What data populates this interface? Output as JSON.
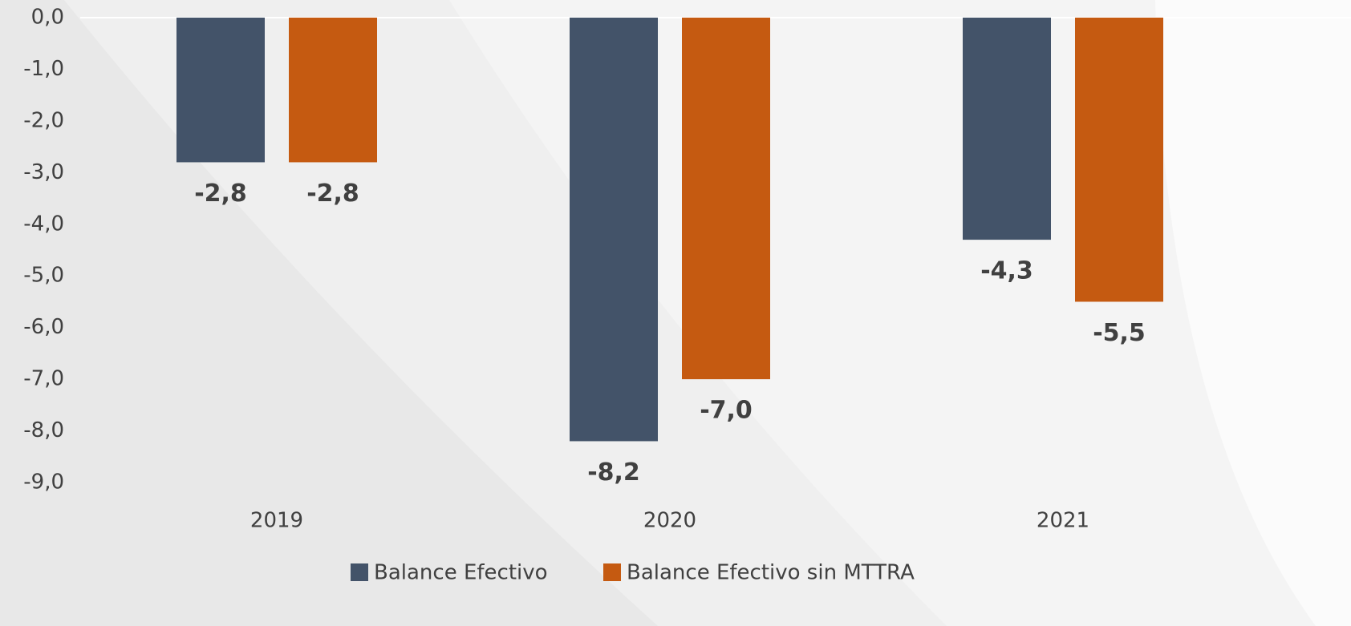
{
  "chart_data": {
    "type": "bar",
    "categories": [
      "2019",
      "2020",
      "2021"
    ],
    "series": [
      {
        "name": "Balance Efectivo",
        "color": "#435369",
        "values": [
          -2.8,
          -8.2,
          -4.3
        ],
        "value_labels": [
          "-2,8",
          "-8,2",
          "-4,3"
        ]
      },
      {
        "name": "Balance Efectivo sin MTTRA",
        "color": "#c55a11",
        "values": [
          -2.8,
          -7.0,
          -5.5
        ],
        "value_labels": [
          "-2,8",
          "-7,0",
          "-5,5"
        ]
      }
    ],
    "ylim": [
      -9,
      0
    ],
    "yticks": [
      {
        "value": 0,
        "label": "0,0"
      },
      {
        "value": -1,
        "label": "-1,0"
      },
      {
        "value": -2,
        "label": "-2,0"
      },
      {
        "value": -3,
        "label": "-3,0"
      },
      {
        "value": -4,
        "label": "-4,0"
      },
      {
        "value": -5,
        "label": "-5,0"
      },
      {
        "value": -6,
        "label": "-6,0"
      },
      {
        "value": -7,
        "label": "-7,0"
      },
      {
        "value": -8,
        "label": "-8,0"
      },
      {
        "value": -9,
        "label": "-9,0"
      }
    ],
    "grid": false,
    "legend": "bottom"
  }
}
